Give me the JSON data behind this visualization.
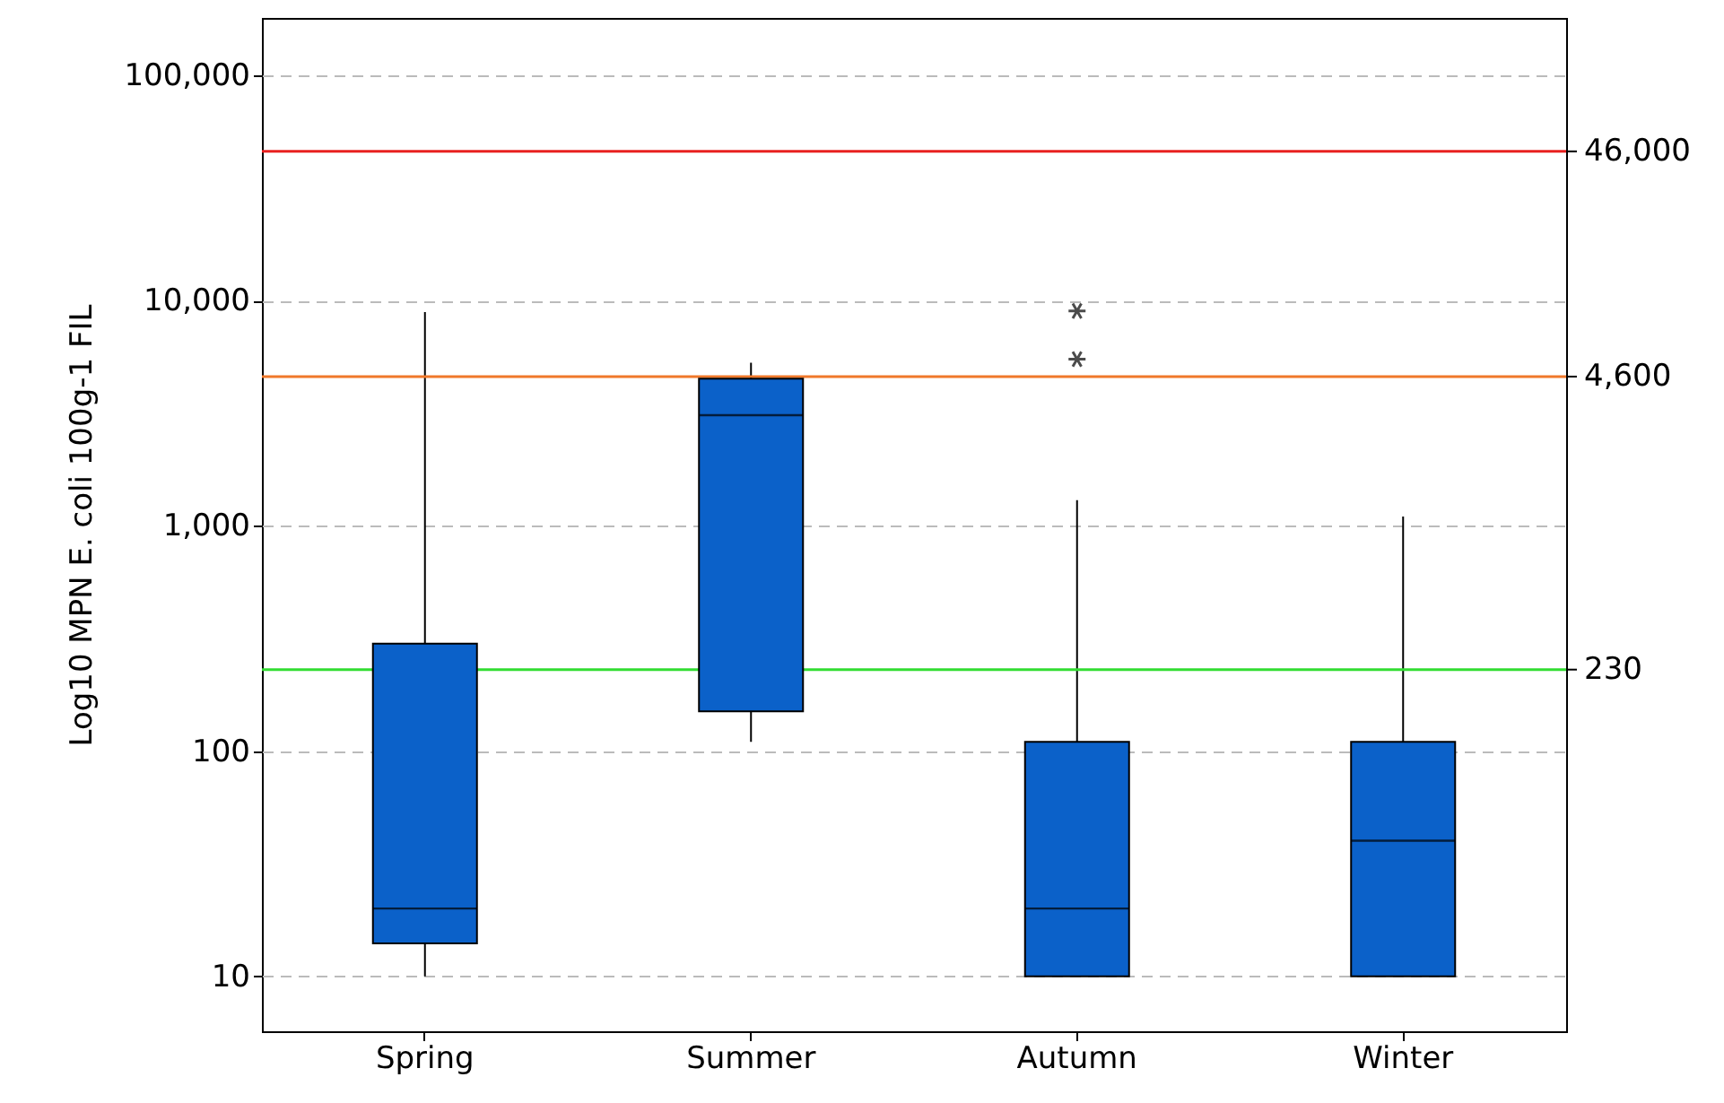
{
  "chart_data": {
    "type": "box",
    "ylabel": "Log10 MPN E. coli 100g-1 FIL",
    "categories": [
      "Spring",
      "Summer",
      "Autumn",
      "Winter"
    ],
    "series": [
      {
        "color": "#0b61c9",
        "boxes": [
          {
            "low": 10,
            "q1": 14,
            "median": 20,
            "q3": 300,
            "high": 8900
          },
          {
            "low": 110,
            "q1": 150,
            "median": 3100,
            "q3": 4500,
            "high": 5300
          },
          {
            "low": 10,
            "q1": 10,
            "median": 20,
            "q3": 110,
            "high": 1300,
            "outliers": [
              5500,
              9000
            ]
          },
          {
            "low": 10,
            "q1": 10,
            "median": 40,
            "q3": 110,
            "high": 1100
          }
        ]
      }
    ],
    "log": true,
    "ylim": [
      5.7,
      180000
    ],
    "yticks": [
      {
        "value": 10,
        "label": "10"
      },
      {
        "value": 100,
        "label": "100"
      },
      {
        "value": 1000,
        "label": "1,000"
      },
      {
        "value": 10000,
        "label": "10,000"
      },
      {
        "value": 100000,
        "label": "100,000"
      }
    ],
    "grid": "y",
    "ref_lines": [
      {
        "axis": "y",
        "value": 46000,
        "label": "46,000",
        "color": "#e8201f"
      },
      {
        "axis": "y",
        "value": 4600,
        "label": "4,600",
        "color": "#f0782a"
      },
      {
        "axis": "y",
        "value": 230,
        "label": "230",
        "color": "#33dd33"
      }
    ]
  }
}
